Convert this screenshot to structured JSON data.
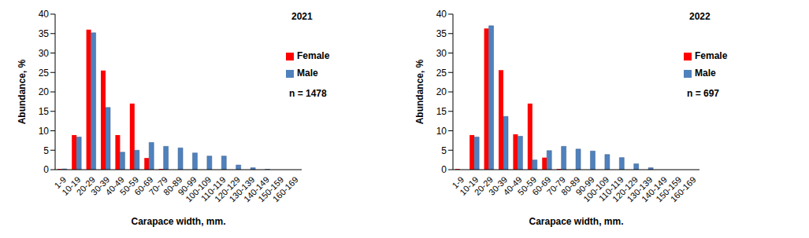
{
  "chart_data": [
    {
      "type": "bar",
      "title": "2021",
      "annotation": "n = 1478",
      "x_label": "Carapace width, mm.",
      "y_label": "Abundance, %",
      "categories": [
        "1-9",
        "10-19",
        "20-29",
        "30-39",
        "40-49",
        "50-59",
        "60-69",
        "70-79",
        "80-89",
        "90-99",
        "100-109",
        "110-119",
        "120-129",
        "130-139",
        "140-149",
        "150-159",
        "160-169"
      ],
      "series": [
        {
          "name": "Female",
          "color": "#ff0000",
          "values": [
            0.2,
            8.9,
            36,
            25.5,
            8.9,
            17,
            3,
            0.2,
            0,
            0,
            0,
            0,
            0,
            0,
            0,
            0,
            0
          ]
        },
        {
          "name": "Male",
          "color": "#4f81bd",
          "values": [
            0.2,
            8.4,
            35.2,
            16,
            4.5,
            5,
            7,
            6,
            5.6,
            4.3,
            3.5,
            3.5,
            1.2,
            0.5,
            0.1,
            0,
            0
          ]
        }
      ],
      "ylim": [
        0,
        40
      ],
      "yticks": [
        0,
        5,
        10,
        15,
        20,
        25,
        30,
        35,
        40
      ],
      "grid": false,
      "legend": "upper right"
    },
    {
      "type": "bar",
      "title": "2022",
      "annotation": "n = 697",
      "x_label": "Carapace width, mm.",
      "y_label": "Abundance, %",
      "categories": [
        "1-9",
        "10-19",
        "20-29",
        "30-39",
        "40-49",
        "50-59",
        "60-69",
        "70-79",
        "80-89",
        "90-99",
        "100-109",
        "110-119",
        "120-129",
        "130-139",
        "140-149",
        "150-159",
        "160-169"
      ],
      "series": [
        {
          "name": "Female",
          "color": "#ff0000",
          "values": [
            0.2,
            8.9,
            36.3,
            25.6,
            9.1,
            17,
            3.1,
            0.2,
            0,
            0,
            0,
            0,
            0,
            0,
            0,
            0,
            0
          ]
        },
        {
          "name": "Male",
          "color": "#4f81bd",
          "values": [
            0,
            8.4,
            37,
            13.7,
            8.6,
            2.5,
            4.9,
            6,
            5.3,
            4.8,
            3.9,
            3.1,
            1.5,
            0.5,
            0,
            0,
            0
          ]
        }
      ],
      "ylim": [
        0,
        40
      ],
      "yticks": [
        0,
        5,
        10,
        15,
        20,
        25,
        30,
        35,
        40
      ],
      "grid": false,
      "legend": "upper right"
    }
  ]
}
